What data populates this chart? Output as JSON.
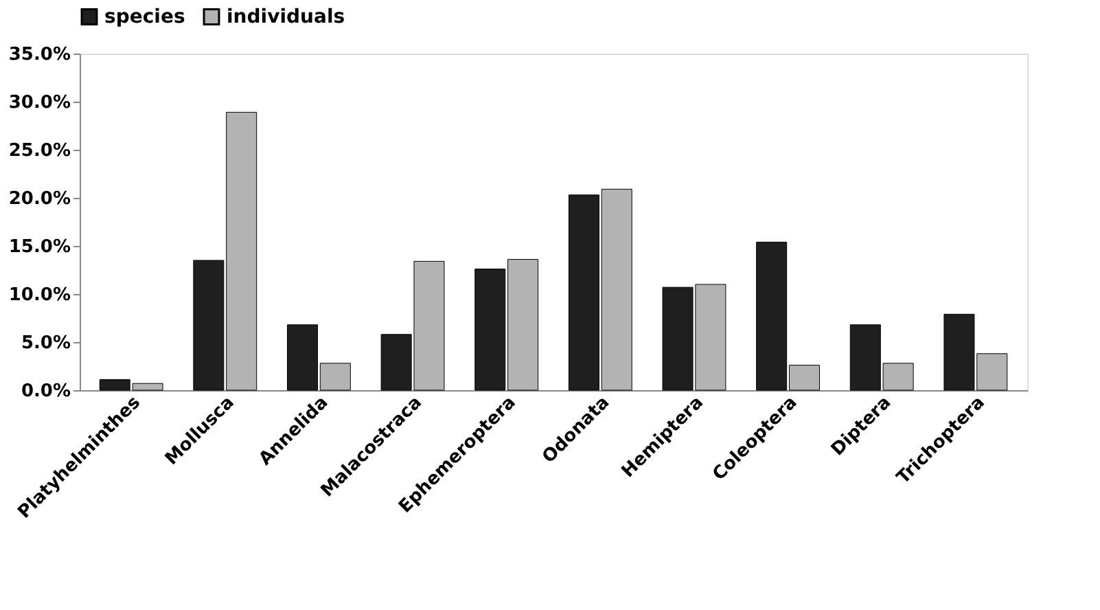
{
  "chart_data": {
    "type": "bar",
    "categories": [
      "Platyhelminthes",
      "Mollusca",
      "Annelida",
      "Malacostraca",
      "Ephemeroptera",
      "Odonata",
      "Hemiptera",
      "Coleoptera",
      "Diptera",
      "Trichoptera"
    ],
    "series": [
      {
        "name": "species",
        "color": "#1f1f1f",
        "values": [
          1.1,
          13.5,
          6.8,
          5.8,
          12.6,
          20.3,
          10.7,
          15.4,
          6.8,
          7.9
        ]
      },
      {
        "name": "individuals",
        "color": "#b3b3b3",
        "values": [
          0.7,
          28.9,
          2.8,
          13.4,
          13.6,
          20.9,
          11.0,
          2.6,
          2.8,
          3.8
        ]
      }
    ],
    "ylim": [
      0,
      35
    ],
    "yticks": [
      {
        "value": 0,
        "label": "0.0%"
      },
      {
        "value": 5,
        "label": "5.0%"
      },
      {
        "value": 10,
        "label": "10.0%"
      },
      {
        "value": 15,
        "label": "15.0%"
      },
      {
        "value": 20,
        "label": "20.0%"
      },
      {
        "value": 25,
        "label": "25.0%"
      },
      {
        "value": 30,
        "label": "30.0%"
      },
      {
        "value": 35,
        "label": "35.0%"
      }
    ],
    "grid": false,
    "legend": "top"
  }
}
